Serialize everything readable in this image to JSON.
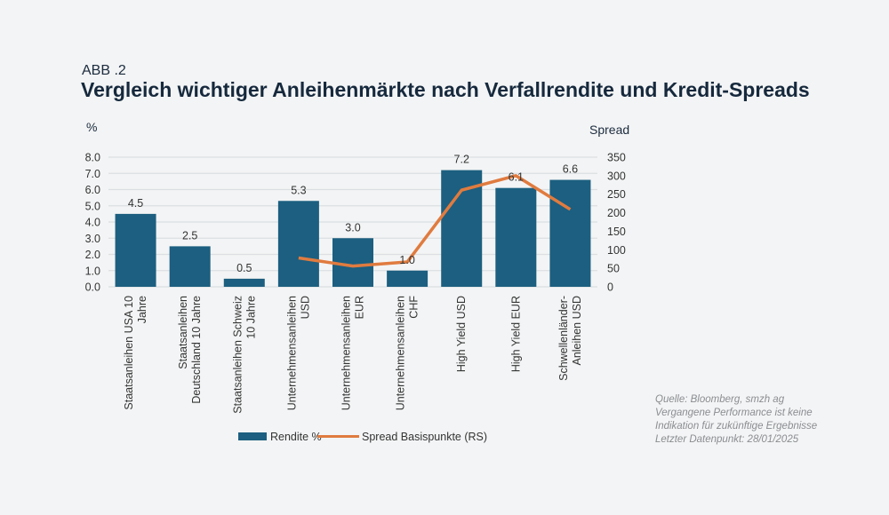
{
  "header": {
    "figure_label": "ABB .2",
    "title": "Vergleich wichtiger Anleihenmärkte nach Verfallrendite und Kredit-Spreads"
  },
  "source": [
    "Quelle: Bloomberg, smzh ag",
    "Vergangene Performance ist keine",
    "Indikation für zukünftige Ergebnisse",
    "Letzter Datenpunkt: 28/01/2025"
  ],
  "chart_data": {
    "type": "bar",
    "title": "Vergleich wichtiger Anleihenmärkte nach Verfallrendite und Kredit-Spreads",
    "ylabel": "%",
    "y2label": "Spread",
    "ylim": [
      0,
      8
    ],
    "y2lim": [
      0,
      350
    ],
    "yticks": [
      "0.0",
      "1.0",
      "2.0",
      "3.0",
      "4.0",
      "5.0",
      "6.0",
      "7.0",
      "8.0"
    ],
    "y2ticks": [
      "0",
      "50",
      "100",
      "150",
      "200",
      "250",
      "300",
      "350"
    ],
    "grid": true,
    "legend": "bottom",
    "categories": [
      [
        "Staatsanleihen USA 10",
        "Jahre"
      ],
      [
        "Staatsanleihen",
        "Deutschland 10 Jahre"
      ],
      [
        "Staatsanleihen Schweiz",
        "10 Jahre"
      ],
      [
        "Unternehmensanleihen",
        "USD"
      ],
      [
        "Unternehmensanleihen",
        "EUR"
      ],
      [
        "Unternehmensanleihen",
        "CHF"
      ],
      [
        "High Yield USD"
      ],
      [
        "High Yield EUR"
      ],
      [
        "Schwellenländer-",
        "Anleihen USD"
      ]
    ],
    "series": [
      {
        "name": "Rendite %",
        "type": "bar",
        "axis": "left",
        "color": "#1c5f80",
        "values": [
          4.5,
          2.5,
          0.5,
          5.3,
          3.0,
          1.0,
          7.2,
          6.1,
          6.6
        ],
        "labels": [
          "4.5",
          "2.5",
          "0.5",
          "5.3",
          "3.0",
          "1.0",
          "7.2",
          "6.1",
          "6.6"
        ]
      },
      {
        "name": "Spread Basispunkte (RS)",
        "type": "line",
        "axis": "right",
        "color": "#e07b3f",
        "values": [
          null,
          null,
          null,
          78,
          56,
          67,
          261,
          300,
          209
        ]
      }
    ]
  }
}
